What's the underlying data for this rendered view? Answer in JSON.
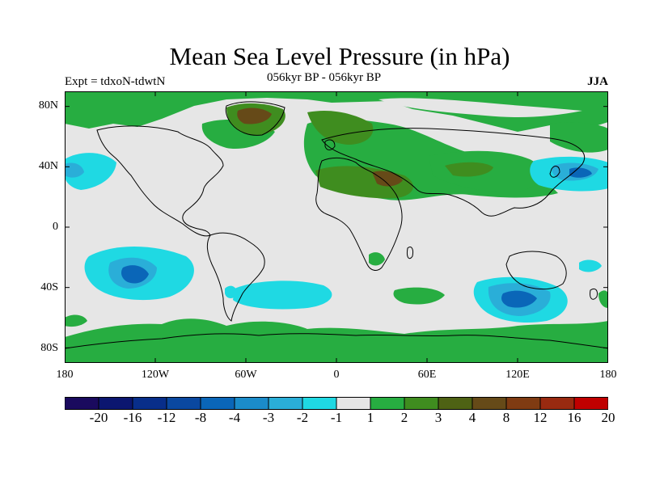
{
  "figure": {
    "title": "Mean Sea Level Pressure (in hPa)",
    "experiment": "Expt = tdxoN-tdwtN",
    "period": "056kyr BP - 056kyr BP",
    "season": "JJA"
  },
  "axes": {
    "lat_labels": [
      "80N",
      "40N",
      "0",
      "40S",
      "80S"
    ],
    "lat_values": [
      80,
      40,
      0,
      -40,
      -80
    ],
    "lon_labels": [
      "180",
      "120W",
      "60W",
      "0",
      "60E",
      "120E",
      "180"
    ],
    "lon_values": [
      -180,
      -120,
      -60,
      0,
      60,
      120,
      180
    ]
  },
  "colorbar": {
    "labels": [
      "-20",
      "-16",
      "-12",
      "-8",
      "-4",
      "-3",
      "-2",
      "-1",
      "1",
      "2",
      "3",
      "4",
      "8",
      "12",
      "16",
      "20"
    ],
    "colors": [
      "#1a0a5e",
      "#0b1670",
      "#082e8a",
      "#0a48a0",
      "#0a66b8",
      "#1b8cca",
      "#2aaed8",
      "#1fd9e3",
      "#e6e6e6",
      "#27ad41",
      "#3f8d1f",
      "#4e6214",
      "#664a18",
      "#7f3b12",
      "#992a10",
      "#c00000"
    ]
  },
  "map_colors": {
    "background": "#e6e6e6",
    "ocean_neutral": "#e6e6e6",
    "pos1": "#27ad41",
    "pos2": "#3f8d1f",
    "pos3": "#664a18",
    "neg1": "#1fd9e3",
    "neg2": "#2aaed8",
    "neg3": "#0a66b8",
    "coast": "#000000"
  }
}
